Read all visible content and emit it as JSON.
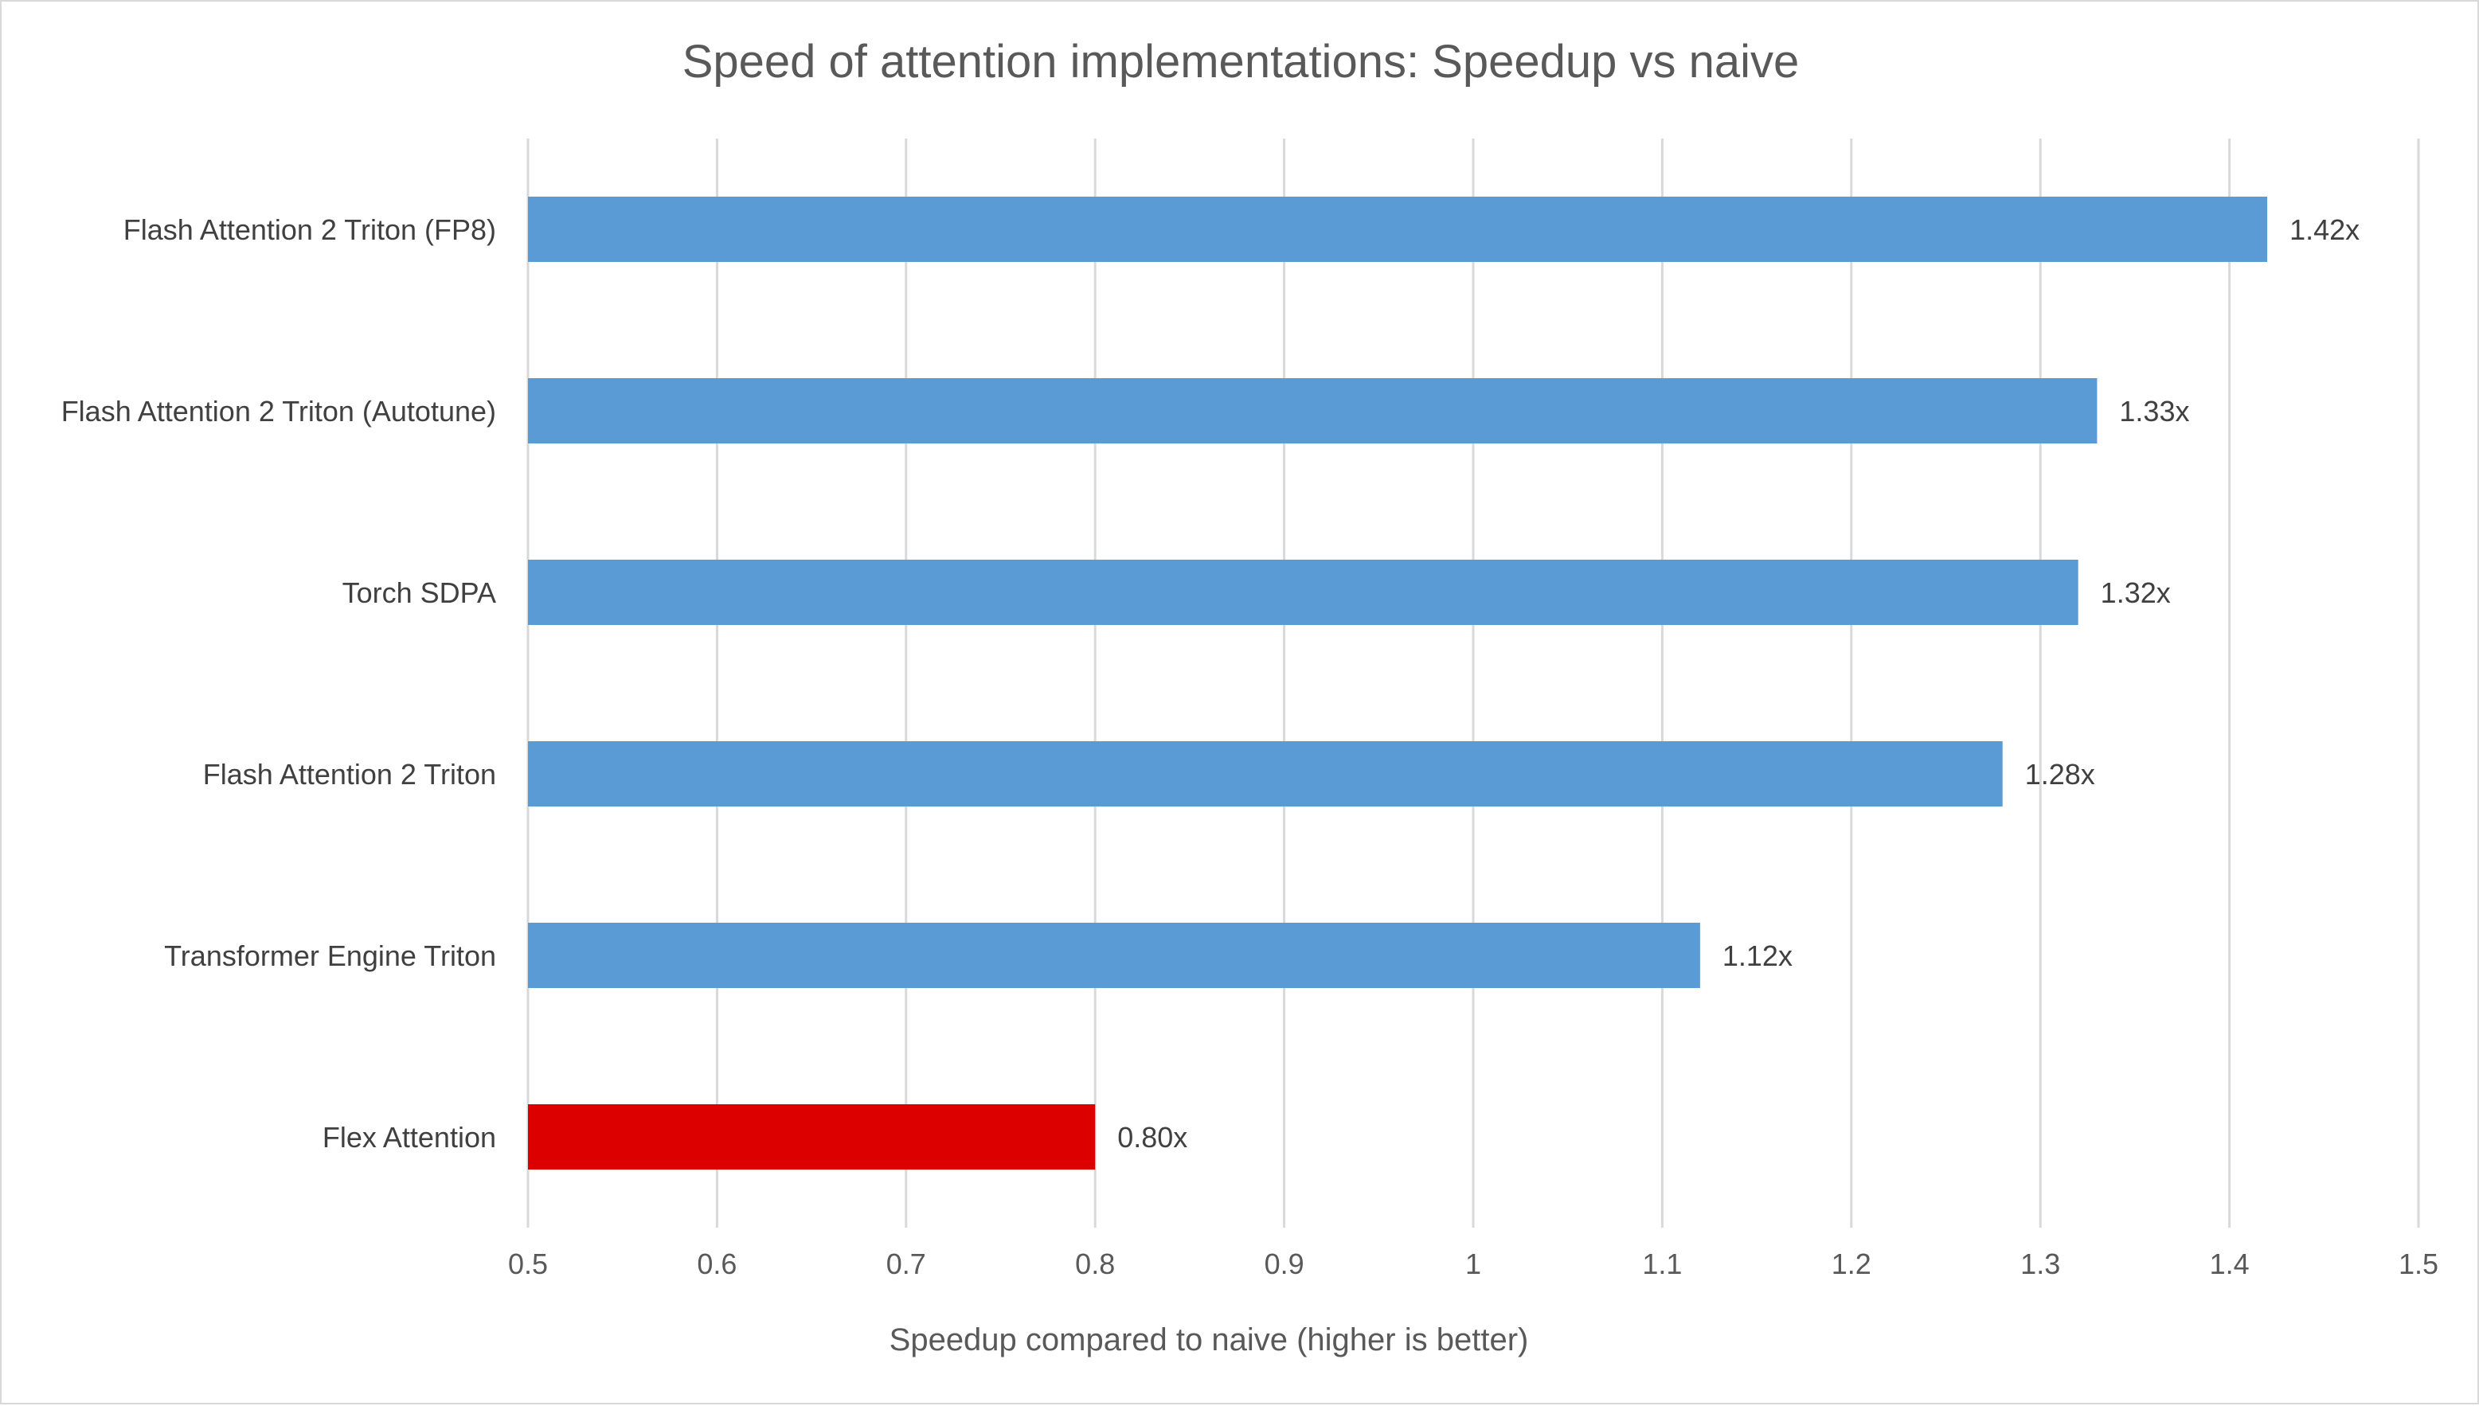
{
  "chart_data": {
    "type": "bar",
    "orientation": "horizontal",
    "title": "Speed of attention implementations: Speedup vs naive",
    "xlabel": "Speedup compared to naive (higher is better)",
    "ylabel": "",
    "xlim": [
      0.5,
      1.5
    ],
    "xticks": [
      "0.5",
      "0.6",
      "0.7",
      "0.8",
      "0.9",
      "1",
      "1.1",
      "1.2",
      "1.3",
      "1.4",
      "1.5"
    ],
    "grid": true,
    "legend": "none",
    "categories": [
      "Flash Attention 2 Triton (FP8)",
      "Flash Attention 2 Triton (Autotune)",
      "Torch SDPA",
      "Flash Attention 2 Triton",
      "Transformer Engine Triton",
      "Flex Attention"
    ],
    "values": [
      1.42,
      1.33,
      1.32,
      1.28,
      1.12,
      0.8
    ],
    "data_labels": [
      "1.42x",
      "1.33x",
      "1.32x",
      "1.28x",
      "1.12x",
      "0.80x"
    ],
    "colors": [
      "#5b9bd5",
      "#5b9bd5",
      "#5b9bd5",
      "#5b9bd5",
      "#5b9bd5",
      "#dc0000"
    ]
  }
}
